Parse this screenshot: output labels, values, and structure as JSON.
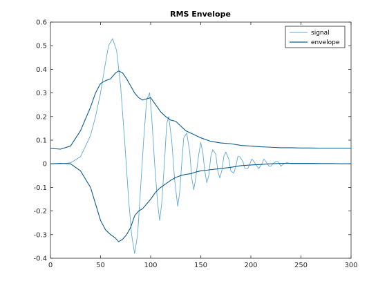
{
  "chart_data": {
    "type": "line",
    "title": "RMS Envelope",
    "xlabel": "",
    "ylabel": "",
    "xlim": [
      0,
      300
    ],
    "ylim": [
      -0.4,
      0.6
    ],
    "x_ticks": [
      0,
      50,
      100,
      150,
      200,
      250,
      300
    ],
    "y_ticks": [
      -0.4,
      -0.3,
      -0.2,
      -0.1,
      0,
      0.1,
      0.2,
      0.3,
      0.4,
      0.5,
      0.6
    ],
    "x_tick_labels": [
      "0",
      "50",
      "100",
      "150",
      "200",
      "250",
      "300"
    ],
    "y_tick_labels": [
      "-0.4",
      "-0.3",
      "-0.2",
      "-0.1",
      "0",
      "0.1",
      "0.2",
      "0.3",
      "0.4",
      "0.5",
      "0.6"
    ],
    "grid": false,
    "legend": {
      "position": "top-right",
      "entries": [
        "signal",
        "envelope"
      ]
    },
    "series": [
      {
        "name": "signal",
        "color": "#5da8d4",
        "x": [
          0,
          10,
          20,
          30,
          40,
          45,
          50,
          55,
          58,
          62,
          66,
          70,
          74,
          78,
          81,
          84,
          87,
          90,
          93,
          96,
          99,
          101,
          104,
          107,
          109,
          111,
          114,
          116,
          118,
          121,
          124,
          127,
          129,
          131,
          133,
          136,
          139,
          141,
          143,
          145,
          148,
          150,
          152,
          154,
          156,
          158,
          160,
          162,
          165,
          167,
          169,
          171,
          173,
          175,
          178,
          180,
          183,
          185,
          187,
          189,
          192,
          194,
          197,
          199,
          201,
          203,
          206,
          208,
          211,
          213,
          215,
          218,
          220,
          222,
          225,
          227,
          230,
          233,
          236,
          240,
          245,
          250,
          260,
          270,
          280,
          290,
          300
        ],
        "y": [
          0,
          0,
          0.004,
          0.03,
          0.12,
          0.2,
          0.3,
          0.43,
          0.5,
          0.53,
          0.48,
          0.33,
          0.1,
          -0.15,
          -0.3,
          -0.38,
          -0.3,
          -0.1,
          0.1,
          0.27,
          0.3,
          0.2,
          0,
          -0.17,
          -0.24,
          -0.17,
          0.02,
          0.17,
          0.2,
          0.1,
          -0.07,
          -0.18,
          -0.12,
          0,
          0.11,
          0.13,
          0.05,
          -0.06,
          -0.11,
          -0.06,
          0.04,
          0.09,
          0.05,
          -0.03,
          -0.08,
          -0.05,
          0.03,
          0.06,
          0.04,
          -0.03,
          -0.06,
          -0.03,
          0.03,
          0.05,
          0.02,
          -0.03,
          -0.04,
          -0.01,
          0.03,
          0.03,
          0.01,
          -0.02,
          -0.02,
          0,
          0.02,
          0.01,
          -0.01,
          -0.02,
          0,
          0.02,
          0.01,
          -0.01,
          -0.01,
          0,
          0.01,
          0.01,
          -0.01,
          0,
          0.005,
          0,
          0,
          0,
          0,
          0,
          0,
          0,
          0
        ]
      },
      {
        "name": "envelope",
        "color": "#0b5a8c",
        "x": [
          0,
          10,
          20,
          30,
          40,
          45,
          50,
          55,
          60,
          65,
          68,
          72,
          76,
          80,
          84,
          88,
          92,
          96,
          100,
          105,
          110,
          115,
          120,
          125,
          130,
          135,
          140,
          145,
          150,
          160,
          170,
          180,
          190,
          200,
          210,
          220,
          230,
          240,
          250,
          260,
          270,
          280,
          290,
          300
        ],
        "y": [
          0.065,
          0.062,
          0.075,
          0.14,
          0.24,
          0.3,
          0.34,
          0.352,
          0.36,
          0.385,
          0.393,
          0.385,
          0.36,
          0.33,
          0.3,
          0.28,
          0.27,
          0.275,
          0.28,
          0.25,
          0.22,
          0.2,
          0.185,
          0.18,
          0.16,
          0.14,
          0.13,
          0.12,
          0.11,
          0.095,
          0.088,
          0.085,
          0.078,
          0.075,
          0.072,
          0.07,
          0.068,
          0.068,
          0.067,
          0.067,
          0.066,
          0.066,
          0.066,
          0.066
        ]
      },
      {
        "name": "envelope",
        "color": "#0b5a8c",
        "x": [
          0,
          10,
          20,
          30,
          40,
          45,
          50,
          55,
          60,
          65,
          68,
          72,
          76,
          80,
          84,
          88,
          92,
          96,
          100,
          105,
          110,
          115,
          120,
          125,
          130,
          135,
          140,
          145,
          150,
          160,
          170,
          180,
          190,
          200,
          210,
          220,
          230,
          240,
          250,
          260,
          270,
          280,
          290,
          300
        ],
        "y": [
          0,
          0.002,
          0,
          -0.03,
          -0.1,
          -0.17,
          -0.24,
          -0.28,
          -0.3,
          -0.315,
          -0.33,
          -0.32,
          -0.3,
          -0.27,
          -0.22,
          -0.2,
          -0.19,
          -0.17,
          -0.15,
          -0.12,
          -0.1,
          -0.085,
          -0.07,
          -0.058,
          -0.05,
          -0.045,
          -0.042,
          -0.035,
          -0.03,
          -0.025,
          -0.02,
          -0.015,
          -0.008,
          -0.005,
          -0.003,
          0,
          0.002,
          0.002,
          0.002,
          0.002,
          0.001,
          0.001,
          0,
          0
        ]
      }
    ]
  }
}
